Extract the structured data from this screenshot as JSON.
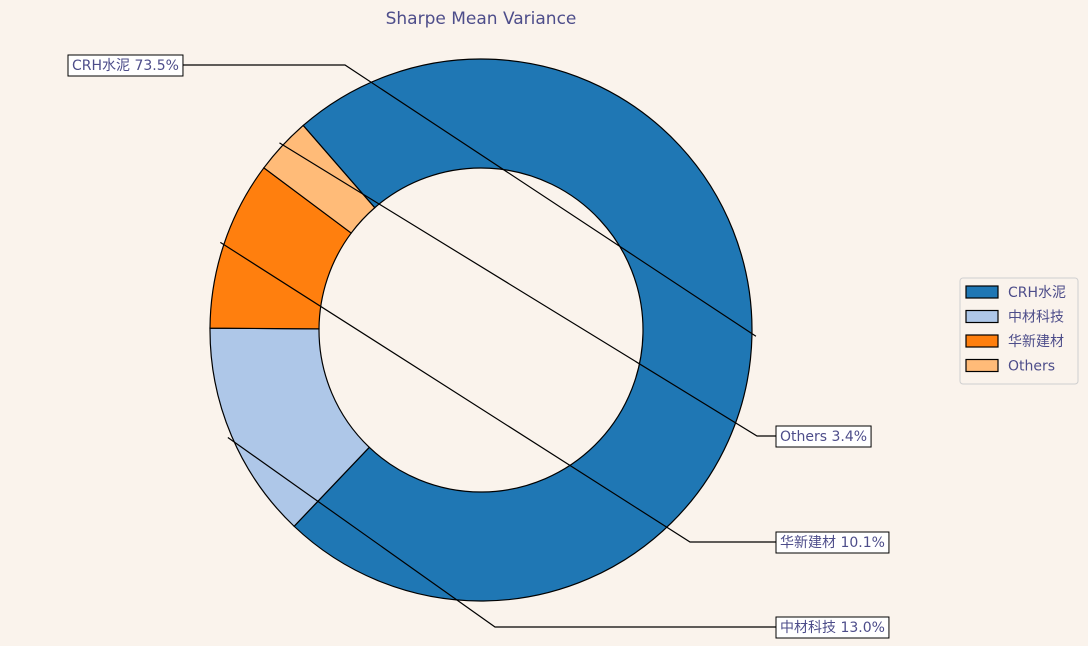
{
  "chart_data": {
    "type": "pie",
    "donut": true,
    "title": "Sharpe Mean Variance",
    "categories": [
      "CRH水泥",
      "中材科技",
      "华新建材",
      "Others"
    ],
    "values": [
      73.5,
      13.0,
      10.1,
      3.4
    ],
    "colors": [
      "#1f77b4",
      "#aec7e8",
      "#ff7f0e",
      "#ffbb78"
    ],
    "labels": [
      "CRH水泥 73.5%",
      "中材科技 13.0%",
      "华新建材 10.1%",
      "Others 3.4%"
    ],
    "legend": {
      "placement": "right",
      "entries": [
        "CRH水泥",
        "中材科技",
        "华新建材",
        "Others"
      ]
    }
  }
}
